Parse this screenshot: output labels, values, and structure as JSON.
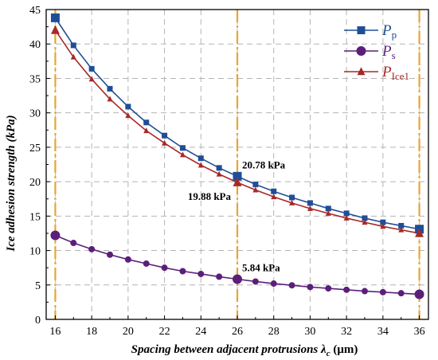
{
  "chart_data": {
    "type": "line",
    "xlabel": {
      "main": "Spacing between adjacent protrusions ",
      "symbol": "λ",
      "subscript": "c",
      "unit": " (μm)"
    },
    "ylabel": "Ice adhesion strength (kPa)",
    "xlim": [
      15.5,
      36.5
    ],
    "ylim": [
      0,
      45
    ],
    "x_ticks": [
      16,
      18,
      20,
      22,
      24,
      26,
      28,
      30,
      32,
      34,
      36
    ],
    "y_ticks": [
      0,
      5,
      10,
      15,
      20,
      25,
      30,
      35,
      40,
      45
    ],
    "grid": true,
    "legend_position": "top-right",
    "vertical_lines": [
      16,
      26,
      36
    ],
    "vertical_line_color": "#e8a530",
    "x": [
      16,
      17,
      18,
      19,
      20,
      21,
      22,
      23,
      24,
      25,
      26,
      27,
      28,
      29,
      30,
      31,
      32,
      33,
      34,
      35,
      36
    ],
    "series": [
      {
        "name": "P",
        "name_sub": "p",
        "color": "#1f4e96",
        "marker": "square",
        "values": [
          43.8,
          39.8,
          36.4,
          33.5,
          30.9,
          28.6,
          26.7,
          24.9,
          23.4,
          22.0,
          20.78,
          19.6,
          18.6,
          17.7,
          16.9,
          16.1,
          15.4,
          14.7,
          14.1,
          13.6,
          13.1
        ]
      },
      {
        "name": "P",
        "name_sub": "s",
        "color": "#5b1f7a",
        "marker": "circle",
        "values": [
          12.2,
          11.1,
          10.2,
          9.4,
          8.7,
          8.1,
          7.5,
          7.0,
          6.6,
          6.2,
          5.84,
          5.5,
          5.2,
          4.95,
          4.7,
          4.5,
          4.3,
          4.1,
          3.95,
          3.8,
          3.65
        ]
      },
      {
        "name": "P",
        "name_sub": "Ice1",
        "color": "#a82828",
        "marker": "triangle",
        "values": [
          42.0,
          38.1,
          34.9,
          32.0,
          29.6,
          27.4,
          25.6,
          23.9,
          22.4,
          21.1,
          19.88,
          18.8,
          17.8,
          16.9,
          16.1,
          15.4,
          14.7,
          14.1,
          13.5,
          13.0,
          12.5
        ]
      }
    ],
    "annotations": [
      {
        "text": "20.78 kPa",
        "x": 26,
        "y": 20.78,
        "anchor": "above-right"
      },
      {
        "text": "19.88 kPa",
        "x": 26,
        "y": 19.88,
        "anchor": "below-left"
      },
      {
        "text": "5.84 kPa",
        "x": 26,
        "y": 5.84,
        "anchor": "above-right"
      }
    ]
  }
}
